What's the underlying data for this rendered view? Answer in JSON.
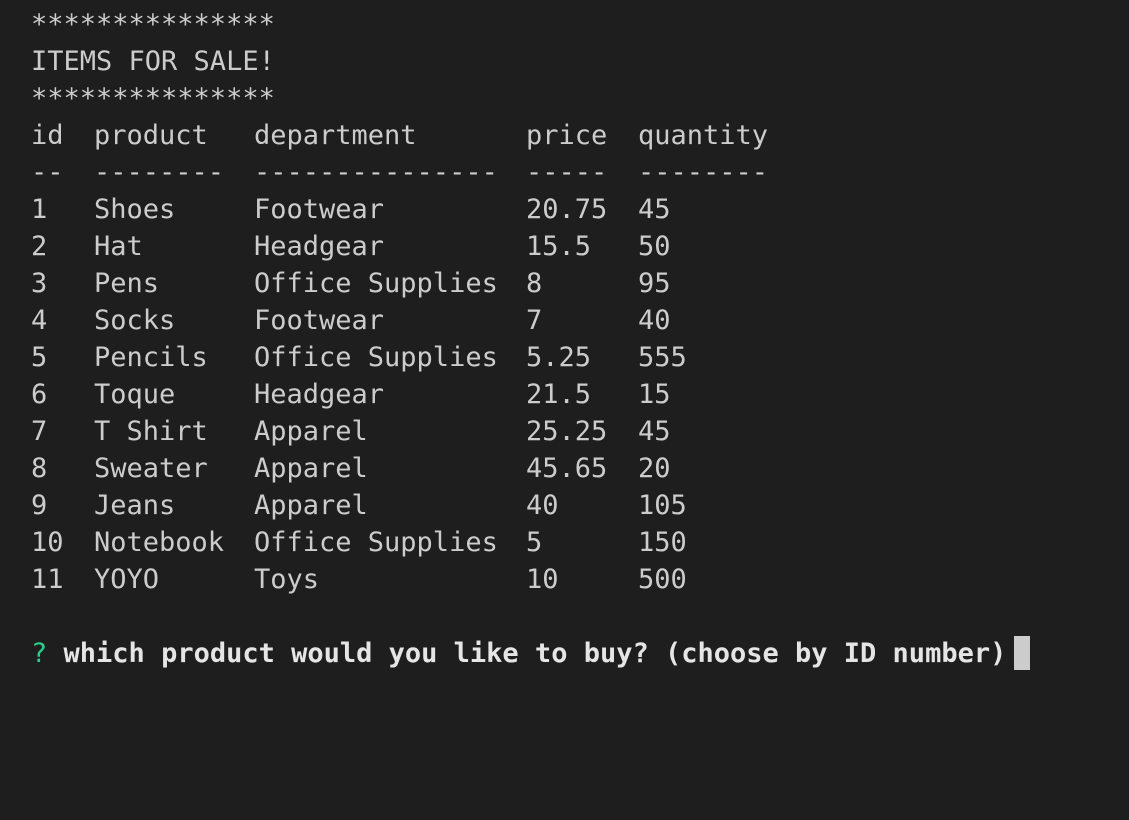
{
  "banner": {
    "top": "***************",
    "title": "ITEMS FOR SALE!",
    "bottom": "***************"
  },
  "table": {
    "headers": {
      "id": "id",
      "product": "product",
      "department": "department",
      "price": "price",
      "quantity": "quantity"
    },
    "separators": {
      "id": "--",
      "product": "--------",
      "department": "---------------",
      "price": "-----",
      "quantity": "--------"
    },
    "rows": [
      {
        "id": "1",
        "product": "Shoes",
        "department": "Footwear",
        "price": "20.75",
        "quantity": "45"
      },
      {
        "id": "2",
        "product": "Hat",
        "department": "Headgear",
        "price": "15.5",
        "quantity": "50"
      },
      {
        "id": "3",
        "product": "Pens",
        "department": "Office Supplies",
        "price": "8",
        "quantity": "95"
      },
      {
        "id": "4",
        "product": "Socks",
        "department": "Footwear",
        "price": "7",
        "quantity": "40"
      },
      {
        "id": "5",
        "product": "Pencils",
        "department": "Office Supplies",
        "price": "5.25",
        "quantity": "555"
      },
      {
        "id": "6",
        "product": "Toque",
        "department": "Headgear",
        "price": "21.5",
        "quantity": "15"
      },
      {
        "id": "7",
        "product": "T Shirt",
        "department": "Apparel",
        "price": "25.25",
        "quantity": "45"
      },
      {
        "id": "8",
        "product": "Sweater",
        "department": "Apparel",
        "price": "45.65",
        "quantity": "20"
      },
      {
        "id": "9",
        "product": "Jeans",
        "department": "Apparel",
        "price": "40",
        "quantity": "105"
      },
      {
        "id": "10",
        "product": "Notebook",
        "department": "Office Supplies",
        "price": "5",
        "quantity": "150"
      },
      {
        "id": "11",
        "product": "YOYO",
        "department": "Toys",
        "price": "10",
        "quantity": "500"
      }
    ]
  },
  "prompt": {
    "marker": "?",
    "question": "which product would you like to buy? (choose by ID number)"
  },
  "colors": {
    "background": "#1e1e1e",
    "text": "#cccccc",
    "prompt_marker": "#23d18b"
  }
}
